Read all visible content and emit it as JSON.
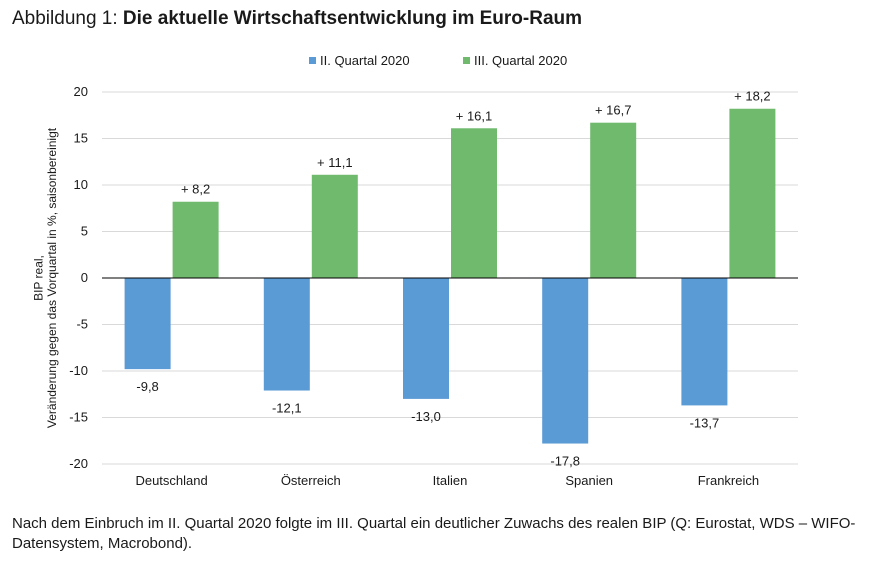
{
  "title": {
    "prefix": "Abbildung 1: ",
    "main": "Die aktuelle Wirtschaftsentwicklung im Euro-Raum"
  },
  "caption": "Nach dem Einbruch im II. Quartal 2020 folgte im III. Quartal ein deutlicher Zuwachs des realen BIP (Q: Eurostat, WDS – WIFO-Datensystem, Macrobond).",
  "colors": {
    "series_q2": "#5b9bd5",
    "series_q3": "#70ba6e",
    "grid": "#d9d9d9",
    "axis": "#000000"
  },
  "chart_data": {
    "type": "bar",
    "ylabel": "BIP real, Veränderung gegen das Vorquartal in %, saisonbereinigt",
    "ylim": [
      -20,
      20
    ],
    "yticks": [
      20,
      15,
      10,
      5,
      0,
      -5,
      -10,
      -15,
      -20
    ],
    "grid": true,
    "legend_position": "top",
    "categories": [
      "Deutschland",
      "Österreich",
      "Italien",
      "Spanien",
      "Frankreich"
    ],
    "series": [
      {
        "name": "II. Quartal 2020",
        "values": [
          -9.8,
          -12.1,
          -13.0,
          -17.8,
          -13.7
        ],
        "labels": [
          "-9,8",
          "-12,1",
          "-13,0",
          "-17,8",
          "-13,7"
        ]
      },
      {
        "name": "III. Quartal 2020",
        "values": [
          8.2,
          11.1,
          16.1,
          16.7,
          18.2
        ],
        "labels": [
          "+ 8,2",
          "+ 11,1",
          "+ 16,1",
          "+ 16,7",
          "+ 18,2"
        ]
      }
    ]
  }
}
